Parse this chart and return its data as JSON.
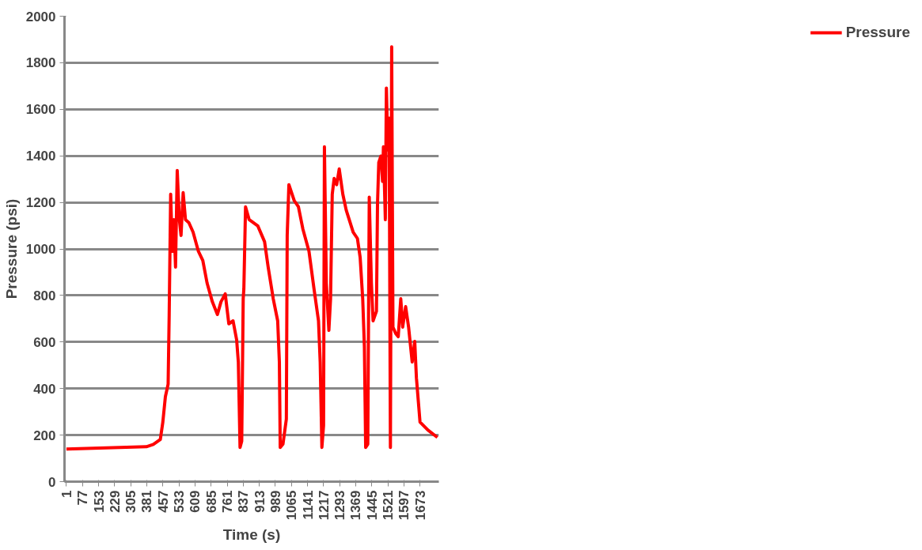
{
  "chart_data": {
    "type": "line",
    "xlabel": "Time (s)",
    "ylabel": "Pressure (psi)",
    "xlim": [
      -8,
      1762
    ],
    "xticks": [
      1,
      77,
      153,
      229,
      305,
      381,
      457,
      533,
      609,
      685,
      761,
      837,
      913,
      989,
      1065,
      1141,
      1217,
      1293,
      1369,
      1445,
      1521,
      1597,
      1673
    ],
    "ylim": [
      0,
      2000
    ],
    "yticks": [
      0,
      200,
      400,
      600,
      800,
      1000,
      1200,
      1400,
      1600,
      1800,
      2000
    ],
    "grid": "y",
    "legend": "right",
    "line_style": "solid",
    "marker": "none",
    "series": [
      {
        "name": "Pressure",
        "color": "#ff0000",
        "x": [
          1,
          379,
          412,
          445,
          457,
          469,
          482,
          487,
          494,
          502,
          509,
          517,
          525,
          535,
          543,
          553,
          564,
          580,
          600,
          625,
          646,
          666,
          691,
          715,
          732,
          752,
          769,
          789,
          806,
          814,
          822,
          830,
          837,
          840,
          848,
          865,
          906,
          938,
          955,
          979,
          1000,
          1008,
          1012,
          1025,
          1041,
          1045,
          1053,
          1078,
          1098,
          1119,
          1148,
          1172,
          1193,
          1201,
          1209,
          1217,
          1221,
          1230,
          1242,
          1250,
          1258,
          1267,
          1279,
          1291,
          1308,
          1324,
          1357,
          1377,
          1390,
          1402,
          1410,
          1416,
          1426,
          1433,
          1443,
          1451,
          1467,
          1472,
          1478,
          1488,
          1496,
          1500,
          1509,
          1514,
          1521,
          1527,
          1533,
          1539,
          1545,
          1558,
          1570,
          1582,
          1591,
          1605,
          1619,
          1636,
          1648,
          1656,
          1673,
          1710,
          1755
        ],
        "values": [
          140,
          150,
          160,
          181,
          256,
          365,
          419,
          718,
          1235,
          990,
          1126,
          922,
          1337,
          1126,
          1058,
          1242,
          1126,
          1113,
          1072,
          990,
          950,
          854,
          773,
          718,
          773,
          807,
          678,
          691,
          609,
          514,
          147,
          174,
          786,
          827,
          1181,
          1126,
          1099,
          1031,
          922,
          786,
          691,
          514,
          147,
          161,
          269,
          1058,
          1276,
          1208,
          1181,
          1086,
          990,
          827,
          691,
          514,
          147,
          242,
          1439,
          854,
          650,
          786,
          1235,
          1303,
          1276,
          1344,
          1235,
          1167,
          1072,
          1045,
          963,
          786,
          582,
          147,
          161,
          1222,
          854,
          691,
          732,
          1194,
          1371,
          1399,
          1290,
          1439,
          1126,
          1691,
          1425,
          1562,
          147,
          1868,
          664,
          637,
          623,
          786,
          664,
          752,
          664,
          514,
          603,
          446,
          256,
          222,
          190
        ]
      }
    ]
  }
}
